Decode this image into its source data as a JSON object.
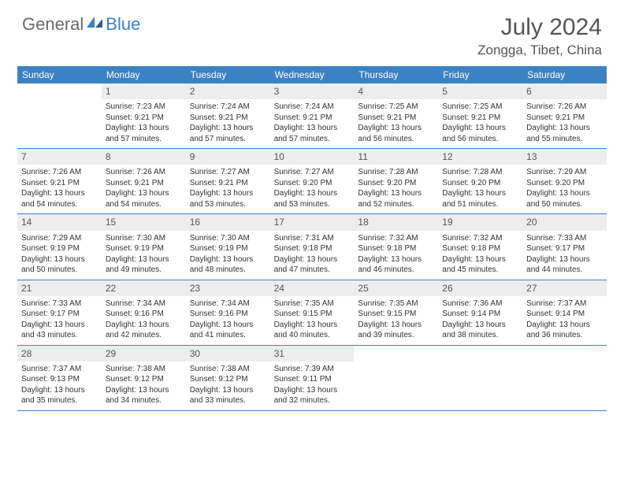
{
  "logo": {
    "text1": "General",
    "text2": "Blue"
  },
  "title": "July 2024",
  "location": "Zongga, Tibet, China",
  "colors": {
    "header_bg": "#3b82c4",
    "daynum_bg": "#ededed",
    "text": "#333333",
    "title_text": "#555555"
  },
  "dayNames": [
    "Sunday",
    "Monday",
    "Tuesday",
    "Wednesday",
    "Thursday",
    "Friday",
    "Saturday"
  ],
  "weeks": [
    [
      null,
      {
        "n": "1",
        "sr": "7:23 AM",
        "ss": "9:21 PM",
        "dl": "13 hours and 57 minutes."
      },
      {
        "n": "2",
        "sr": "7:24 AM",
        "ss": "9:21 PM",
        "dl": "13 hours and 57 minutes."
      },
      {
        "n": "3",
        "sr": "7:24 AM",
        "ss": "9:21 PM",
        "dl": "13 hours and 57 minutes."
      },
      {
        "n": "4",
        "sr": "7:25 AM",
        "ss": "9:21 PM",
        "dl": "13 hours and 56 minutes."
      },
      {
        "n": "5",
        "sr": "7:25 AM",
        "ss": "9:21 PM",
        "dl": "13 hours and 56 minutes."
      },
      {
        "n": "6",
        "sr": "7:26 AM",
        "ss": "9:21 PM",
        "dl": "13 hours and 55 minutes."
      }
    ],
    [
      {
        "n": "7",
        "sr": "7:26 AM",
        "ss": "9:21 PM",
        "dl": "13 hours and 54 minutes."
      },
      {
        "n": "8",
        "sr": "7:26 AM",
        "ss": "9:21 PM",
        "dl": "13 hours and 54 minutes."
      },
      {
        "n": "9",
        "sr": "7:27 AM",
        "ss": "9:21 PM",
        "dl": "13 hours and 53 minutes."
      },
      {
        "n": "10",
        "sr": "7:27 AM",
        "ss": "9:20 PM",
        "dl": "13 hours and 53 minutes."
      },
      {
        "n": "11",
        "sr": "7:28 AM",
        "ss": "9:20 PM",
        "dl": "13 hours and 52 minutes."
      },
      {
        "n": "12",
        "sr": "7:28 AM",
        "ss": "9:20 PM",
        "dl": "13 hours and 51 minutes."
      },
      {
        "n": "13",
        "sr": "7:29 AM",
        "ss": "9:20 PM",
        "dl": "13 hours and 50 minutes."
      }
    ],
    [
      {
        "n": "14",
        "sr": "7:29 AM",
        "ss": "9:19 PM",
        "dl": "13 hours and 50 minutes."
      },
      {
        "n": "15",
        "sr": "7:30 AM",
        "ss": "9:19 PM",
        "dl": "13 hours and 49 minutes."
      },
      {
        "n": "16",
        "sr": "7:30 AM",
        "ss": "9:19 PM",
        "dl": "13 hours and 48 minutes."
      },
      {
        "n": "17",
        "sr": "7:31 AM",
        "ss": "9:18 PM",
        "dl": "13 hours and 47 minutes."
      },
      {
        "n": "18",
        "sr": "7:32 AM",
        "ss": "9:18 PM",
        "dl": "13 hours and 46 minutes."
      },
      {
        "n": "19",
        "sr": "7:32 AM",
        "ss": "9:18 PM",
        "dl": "13 hours and 45 minutes."
      },
      {
        "n": "20",
        "sr": "7:33 AM",
        "ss": "9:17 PM",
        "dl": "13 hours and 44 minutes."
      }
    ],
    [
      {
        "n": "21",
        "sr": "7:33 AM",
        "ss": "9:17 PM",
        "dl": "13 hours and 43 minutes."
      },
      {
        "n": "22",
        "sr": "7:34 AM",
        "ss": "9:16 PM",
        "dl": "13 hours and 42 minutes."
      },
      {
        "n": "23",
        "sr": "7:34 AM",
        "ss": "9:16 PM",
        "dl": "13 hours and 41 minutes."
      },
      {
        "n": "24",
        "sr": "7:35 AM",
        "ss": "9:15 PM",
        "dl": "13 hours and 40 minutes."
      },
      {
        "n": "25",
        "sr": "7:35 AM",
        "ss": "9:15 PM",
        "dl": "13 hours and 39 minutes."
      },
      {
        "n": "26",
        "sr": "7:36 AM",
        "ss": "9:14 PM",
        "dl": "13 hours and 38 minutes."
      },
      {
        "n": "27",
        "sr": "7:37 AM",
        "ss": "9:14 PM",
        "dl": "13 hours and 36 minutes."
      }
    ],
    [
      {
        "n": "28",
        "sr": "7:37 AM",
        "ss": "9:13 PM",
        "dl": "13 hours and 35 minutes."
      },
      {
        "n": "29",
        "sr": "7:38 AM",
        "ss": "9:12 PM",
        "dl": "13 hours and 34 minutes."
      },
      {
        "n": "30",
        "sr": "7:38 AM",
        "ss": "9:12 PM",
        "dl": "13 hours and 33 minutes."
      },
      {
        "n": "31",
        "sr": "7:39 AM",
        "ss": "9:11 PM",
        "dl": "13 hours and 32 minutes."
      },
      null,
      null,
      null
    ]
  ],
  "labels": {
    "sunrise": "Sunrise:",
    "sunset": "Sunset:",
    "daylight": "Daylight:"
  }
}
